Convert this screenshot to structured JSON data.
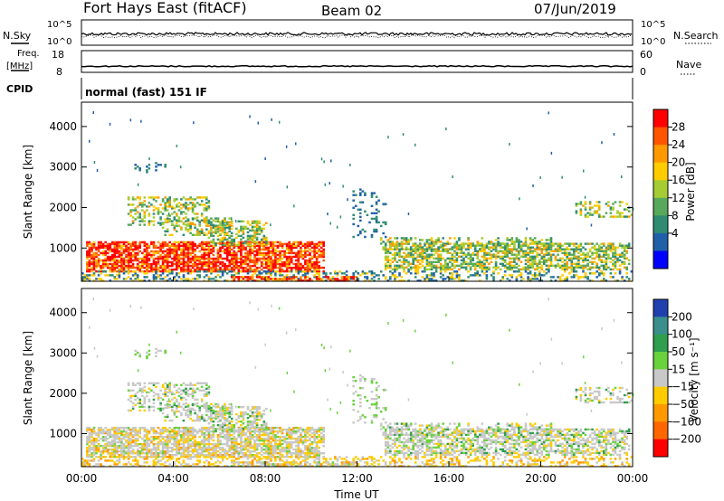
{
  "header": {
    "station": "Fort Hays East (fitACF)",
    "beam": "Beam 02",
    "date": "07/Jun/2019"
  },
  "left_labels": {
    "nsky": "N.Sky",
    "freq": "Freq.",
    "freq_unit": "[MHz]",
    "cpid": "CPID"
  },
  "right_labels": {
    "nsearch": "N.Search",
    "nave": "Nave"
  },
  "mode_text": "normal (fast) 151 IF",
  "chart_data": [
    {
      "id": "noise",
      "type": "line",
      "y_tick_labels": [
        "10^5",
        "10^0"
      ],
      "right_tick_labels": [
        "10^5",
        "10^0"
      ],
      "series": [
        {
          "name": "N.Sky",
          "level": 0.45
        },
        {
          "name": "N.Search",
          "level": 0.35
        }
      ]
    },
    {
      "id": "freq_nave",
      "type": "line",
      "y_tick_labels": [
        "18",
        "8"
      ],
      "right_tick_labels": [
        "60",
        "0"
      ],
      "series": [
        {
          "name": "Freq.",
          "value_mhz": 10.8,
          "ylim": [
            8,
            18
          ]
        }
      ]
    },
    {
      "id": "power",
      "type": "heatmap",
      "ylabel": "Slant Range [km]",
      "y_ticks": [
        1000,
        2000,
        3000,
        4000
      ],
      "ylim": [
        180,
        4600
      ],
      "colorbar_label": "Power [dB]",
      "colorbar_ticks": [
        "28",
        "24",
        "20",
        "16",
        "12",
        "8",
        "4"
      ],
      "colorbar_colors": [
        "#ff0000",
        "#ff5500",
        "#ff9900",
        "#ffcc00",
        "#a5cc32",
        "#57a85a",
        "#2f8c73",
        "#2060a8",
        "#0000ff"
      ]
    },
    {
      "id": "velocity",
      "type": "heatmap",
      "ylabel": "Slant Range [km]",
      "y_ticks": [
        1000,
        2000,
        3000,
        4000
      ],
      "ylim": [
        180,
        4600
      ],
      "xlabel": "Time UT",
      "x_ticks": [
        "00:00",
        "04:00",
        "08:00",
        "12:00",
        "16:00",
        "20:00",
        "00:00"
      ],
      "colorbar_label": "Velocity [m s⁻¹]",
      "colorbar_ticks": [
        "200",
        "100",
        "50",
        "15",
        "−15",
        "−50",
        "−100",
        "−200"
      ],
      "colorbar_colors": [
        "#2040b0",
        "#3a8f8c",
        "#2f9e4d",
        "#6ad23c",
        "#c8c8c8",
        "#ffcc00",
        "#ff9900",
        "#ff6600",
        "#ff0000"
      ]
    }
  ]
}
